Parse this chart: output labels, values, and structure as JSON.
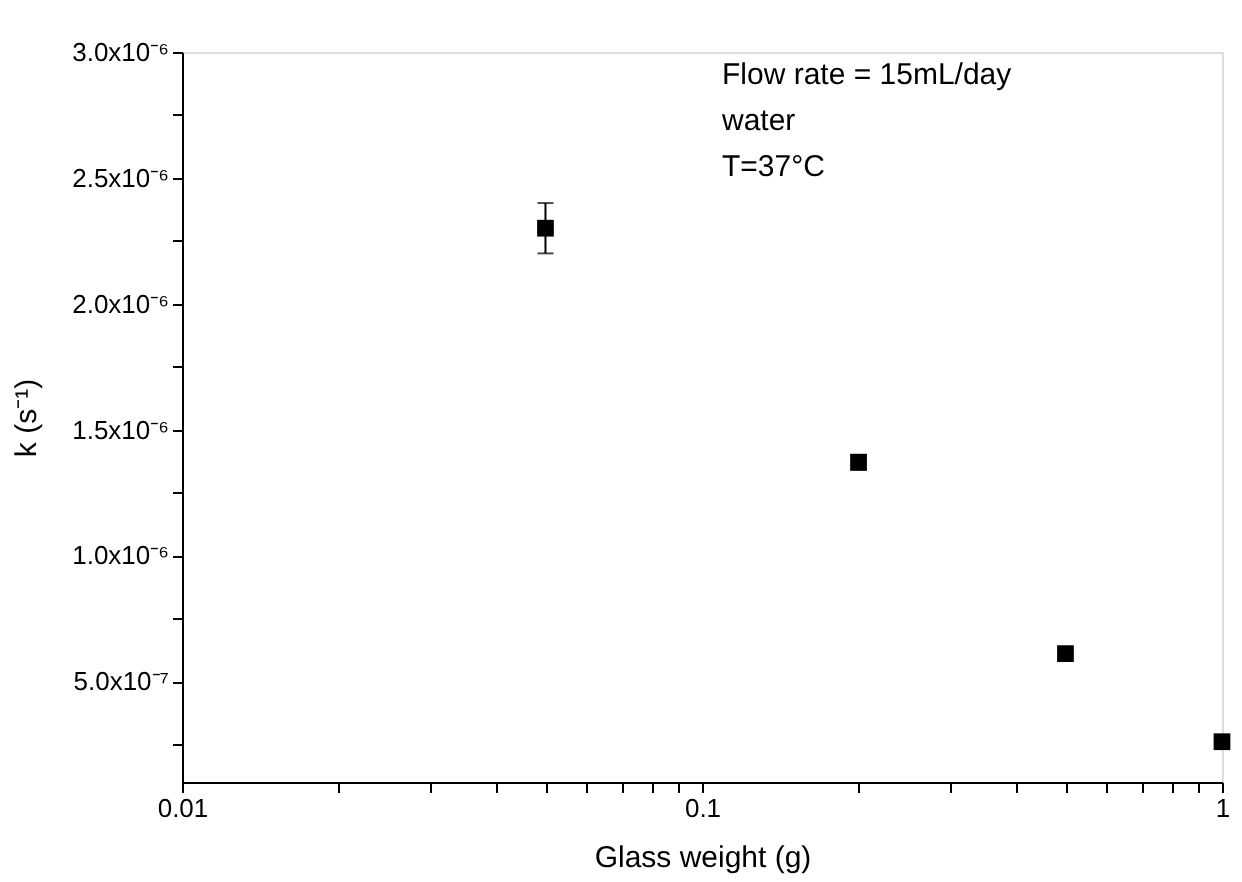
{
  "chart_data": {
    "type": "scatter",
    "xlabel": "Glass weight (g)",
    "ylabel": "k (s⁻¹)",
    "x": [
      0.05,
      0.2,
      0.5,
      1
    ],
    "series": [
      {
        "color": "#000000",
        "values": [
          2.3e-06,
          1.37e-06,
          6.1e-07,
          2.6e-07
        ],
        "errors": [
          1e-07,
          3e-08,
          null,
          null
        ]
      }
    ],
    "marker": "square",
    "log": "x",
    "grid": false,
    "xlim": [
      0.01,
      1
    ],
    "xticks": [
      0.01,
      {
        "value": 0.02,
        "label": null
      },
      {
        "value": 0.03,
        "label": null
      },
      {
        "value": 0.04,
        "label": null
      },
      {
        "value": 0.05,
        "label": null
      },
      {
        "value": 0.06,
        "label": null
      },
      {
        "value": 0.07,
        "label": null
      },
      {
        "value": 0.08,
        "label": null
      },
      {
        "value": 0.09,
        "label": null
      },
      0.1,
      {
        "value": 0.2,
        "label": null
      },
      {
        "value": 0.3,
        "label": null
      },
      {
        "value": 0.4,
        "label": null
      },
      {
        "value": 0.5,
        "label": null
      },
      {
        "value": 0.6,
        "label": null
      },
      {
        "value": 0.7,
        "label": null
      },
      {
        "value": 0.8,
        "label": null
      },
      {
        "value": 0.9,
        "label": null
      },
      1
    ],
    "ylim": [
      1e-07,
      3e-06
    ],
    "yticks": [
      {
        "value": 2.5e-07,
        "label": null
      },
      {
        "value": 5e-07,
        "label": "5.0x10⁻⁷"
      },
      {
        "value": 7.5e-07,
        "label": null
      },
      {
        "value": 1e-06,
        "label": "1.0x10⁻⁶"
      },
      {
        "value": 1.25e-06,
        "label": null
      },
      {
        "value": 1.5e-06,
        "label": "1.5x10⁻⁶"
      },
      {
        "value": 1.75e-06,
        "label": null
      },
      {
        "value": 2e-06,
        "label": "2.0x10⁻⁶"
      },
      {
        "value": 2.25e-06,
        "label": null
      },
      {
        "value": 2.5e-06,
        "label": "2.5x10⁻⁶"
      },
      {
        "value": 2.75e-06,
        "label": null
      },
      {
        "value": 3e-06,
        "label": "3.0x10⁻⁶"
      }
    ],
    "annotations": [
      "Flow rate = 15mL/day",
      "water",
      "T=37°C"
    ]
  }
}
